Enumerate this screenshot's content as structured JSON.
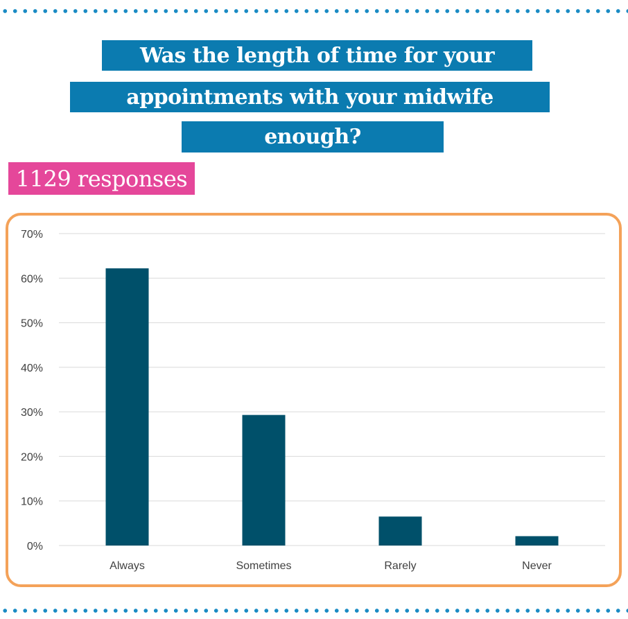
{
  "title_lines": [
    "Was the length of time for your",
    "appointments with your  midwife",
    "enough?"
  ],
  "responses_label": "1129 responses",
  "colors": {
    "title_bg": "#0b7bb0",
    "responses_bg": "#e5479a",
    "frame_border": "#f4a259",
    "bar": "#00506a",
    "dots": "#1a8bc4"
  },
  "chart_data": {
    "type": "bar",
    "categories": [
      "Always",
      "Sometimes",
      "Rarely",
      "Never"
    ],
    "values": [
      62.2,
      29.3,
      6.5,
      2.1
    ],
    "ylim": [
      0,
      70
    ],
    "yticks": [
      0,
      10,
      20,
      30,
      40,
      50,
      60,
      70
    ],
    "ytick_labels": [
      "0%",
      "10%",
      "20%",
      "30%",
      "40%",
      "50%",
      "60%",
      "70%"
    ],
    "grid": true,
    "legend": "none",
    "xlabel": "",
    "ylabel": "",
    "title": ""
  }
}
